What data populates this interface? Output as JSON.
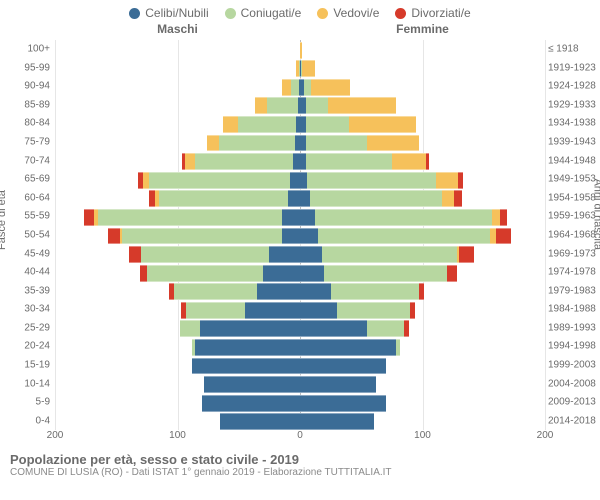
{
  "legend": [
    {
      "label": "Celibi/Nubili",
      "color": "#3b6c96"
    },
    {
      "label": "Coniugati/e",
      "color": "#b7d7a0"
    },
    {
      "label": "Vedovi/e",
      "color": "#f6c15b"
    },
    {
      "label": "Divorziati/e",
      "color": "#d63a2a"
    }
  ],
  "gender_left_label": "Maschi",
  "gender_right_label": "Femmine",
  "y_axis_left_title": "Fasce di età",
  "y_axis_right_title": "Anni di nascita",
  "chart": {
    "max_value": 200,
    "x_ticks_left": [
      200,
      100,
      0
    ],
    "x_ticks_right": [
      0,
      100,
      200
    ],
    "colors": {
      "celibi": "#3b6c96",
      "coniugati": "#b7d7a0",
      "vedovi": "#f6c15b",
      "divorziati": "#d63a2a",
      "grid": "#e6e6e6",
      "center_line": "#bbbbbb",
      "background": "#ffffff"
    },
    "rows": [
      {
        "age": "0-4",
        "year": "2014-2018",
        "m": [
          65,
          0,
          0,
          0
        ],
        "f": [
          60,
          0,
          0,
          0
        ]
      },
      {
        "age": "5-9",
        "year": "2009-2013",
        "m": [
          80,
          0,
          0,
          0
        ],
        "f": [
          70,
          0,
          0,
          0
        ]
      },
      {
        "age": "10-14",
        "year": "2004-2008",
        "m": [
          78,
          0,
          0,
          0
        ],
        "f": [
          62,
          0,
          0,
          0
        ]
      },
      {
        "age": "15-19",
        "year": "1999-2003",
        "m": [
          88,
          0,
          0,
          0
        ],
        "f": [
          70,
          0,
          0,
          0
        ]
      },
      {
        "age": "20-24",
        "year": "1994-1998",
        "m": [
          86,
          2,
          0,
          0
        ],
        "f": [
          78,
          4,
          0,
          0
        ]
      },
      {
        "age": "25-29",
        "year": "1989-1993",
        "m": [
          82,
          16,
          0,
          0
        ],
        "f": [
          55,
          30,
          0,
          4
        ]
      },
      {
        "age": "30-34",
        "year": "1984-1988",
        "m": [
          45,
          48,
          0,
          4
        ],
        "f": [
          30,
          60,
          0,
          4
        ]
      },
      {
        "age": "35-39",
        "year": "1979-1983",
        "m": [
          35,
          68,
          0,
          4
        ],
        "f": [
          25,
          72,
          0,
          4
        ]
      },
      {
        "age": "40-44",
        "year": "1974-1978",
        "m": [
          30,
          95,
          0,
          6
        ],
        "f": [
          20,
          100,
          0,
          8
        ]
      },
      {
        "age": "45-49",
        "year": "1969-1973",
        "m": [
          25,
          105,
          0,
          10
        ],
        "f": [
          18,
          110,
          2,
          12
        ]
      },
      {
        "age": "50-54",
        "year": "1964-1968",
        "m": [
          15,
          130,
          2,
          10
        ],
        "f": [
          15,
          140,
          5,
          12
        ]
      },
      {
        "age": "55-59",
        "year": "1959-1963",
        "m": [
          15,
          150,
          3,
          8
        ],
        "f": [
          12,
          145,
          6,
          6
        ]
      },
      {
        "age": "60-64",
        "year": "1954-1958",
        "m": [
          10,
          105,
          3,
          5
        ],
        "f": [
          8,
          108,
          10,
          6
        ]
      },
      {
        "age": "65-69",
        "year": "1949-1953",
        "m": [
          8,
          115,
          5,
          4
        ],
        "f": [
          6,
          105,
          18,
          4
        ]
      },
      {
        "age": "70-74",
        "year": "1944-1948",
        "m": [
          6,
          80,
          8,
          2
        ],
        "f": [
          5,
          70,
          28,
          2
        ]
      },
      {
        "age": "75-79",
        "year": "1939-1943",
        "m": [
          4,
          62,
          10,
          0
        ],
        "f": [
          5,
          50,
          42,
          0
        ]
      },
      {
        "age": "80-84",
        "year": "1934-1938",
        "m": [
          3,
          48,
          12,
          0
        ],
        "f": [
          5,
          35,
          55,
          0
        ]
      },
      {
        "age": "85-89",
        "year": "1929-1933",
        "m": [
          2,
          25,
          10,
          0
        ],
        "f": [
          5,
          18,
          55,
          0
        ]
      },
      {
        "age": "90-94",
        "year": "1924-1928",
        "m": [
          1,
          6,
          8,
          0
        ],
        "f": [
          3,
          6,
          32,
          0
        ]
      },
      {
        "age": "95-99",
        "year": "1919-1923",
        "m": [
          0,
          1,
          2,
          0
        ],
        "f": [
          1,
          1,
          10,
          0
        ]
      },
      {
        "age": "100+",
        "year": "≤ 1918",
        "m": [
          0,
          0,
          0,
          0
        ],
        "f": [
          0,
          0,
          2,
          0
        ]
      }
    ]
  },
  "title": "Popolazione per età, sesso e stato civile - 2019",
  "subtitle": "COMUNE DI LUSIA (RO) - Dati ISTAT 1° gennaio 2019 - Elaborazione TUTTITALIA.IT"
}
